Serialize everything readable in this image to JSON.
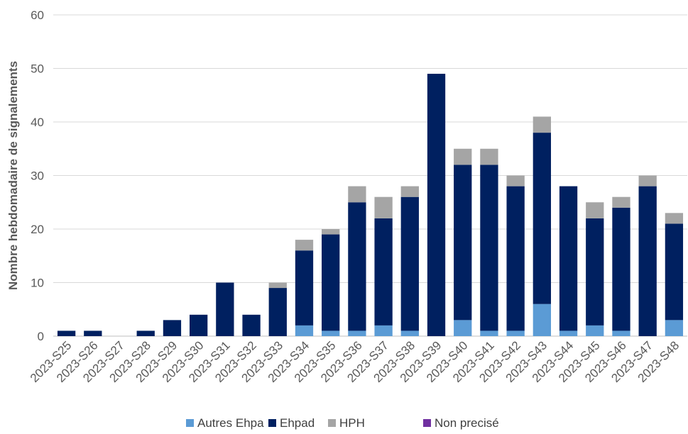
{
  "chart_data": {
    "type": "bar",
    "stacked": true,
    "title": "",
    "xlabel": "",
    "ylabel": "Nombre hebdomadaire de signalements",
    "ylim": [
      0,
      60
    ],
    "yticks": [
      0,
      10,
      20,
      30,
      40,
      50,
      60
    ],
    "grid": true,
    "legend_position": "bottom",
    "categories": [
      "2023-S25",
      "2023-S26",
      "2023-S27",
      "2023-S28",
      "2023-S29",
      "2023-S30",
      "2023-S31",
      "2023-S32",
      "2023-S33",
      "2023-S34",
      "2023-S35",
      "2023-S36",
      "2023-S37",
      "2023-S38",
      "2023-S39",
      "2023-S40",
      "2023-S41",
      "2023-S42",
      "2023-S43",
      "2023-S44",
      "2023-S45",
      "2023-S46",
      "2023-S47",
      "2023-S48"
    ],
    "series": [
      {
        "name": "Autres Ehpa",
        "color": "#5B9BD5",
        "values": [
          0,
          0,
          0,
          0,
          0,
          0,
          0,
          0,
          0,
          2,
          1,
          1,
          2,
          1,
          0,
          3,
          1,
          1,
          6,
          1,
          2,
          1,
          0,
          3
        ]
      },
      {
        "name": "Ehpad",
        "color": "#002060",
        "values": [
          1,
          1,
          0,
          1,
          3,
          4,
          10,
          4,
          9,
          14,
          18,
          24,
          20,
          25,
          49,
          29,
          31,
          27,
          32,
          27,
          20,
          23,
          28,
          18
        ]
      },
      {
        "name": "HPH",
        "color": "#A5A5A5",
        "values": [
          0,
          0,
          0,
          0,
          0,
          0,
          0,
          0,
          1,
          2,
          1,
          3,
          4,
          2,
          0,
          3,
          3,
          2,
          3,
          0,
          3,
          2,
          2,
          2
        ]
      },
      {
        "name": "Non precisé",
        "color": "#7030A0",
        "values": [
          0,
          0,
          0,
          0,
          0,
          0,
          0,
          0,
          0,
          0,
          0,
          0,
          0,
          0,
          0,
          0,
          0,
          0,
          0,
          0,
          0,
          0,
          0,
          0
        ]
      }
    ]
  }
}
